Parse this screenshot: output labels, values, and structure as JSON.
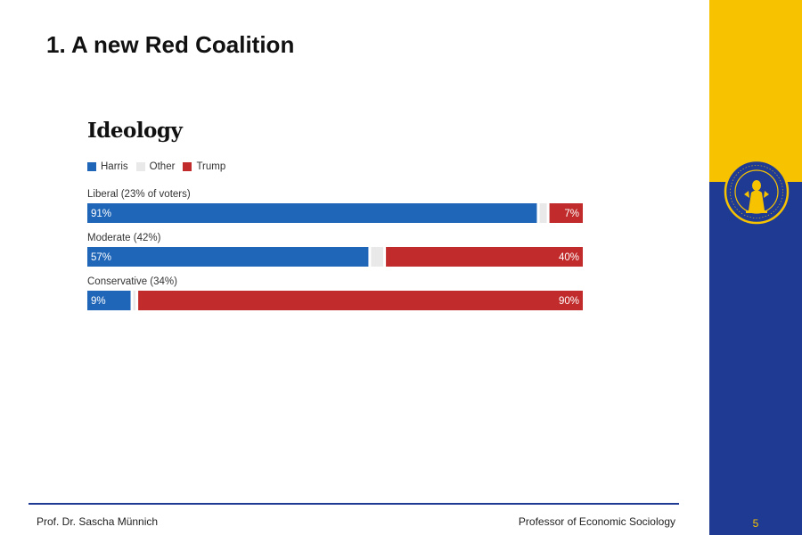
{
  "slide": {
    "title": "1. A new Red Coalition",
    "footer_left": "Prof. Dr. Sascha Münnich",
    "footer_right": "Professor of Economic Sociology",
    "page_number": "5"
  },
  "colors": {
    "harris": "#1f66b8",
    "other": "#e9e9e9",
    "trump": "#c12b2b",
    "brand_blue": "#1f3a93",
    "brand_yellow": "#f7c300"
  },
  "chart_data": {
    "type": "bar",
    "orientation": "horizontal",
    "stacked": true,
    "title": "Ideology",
    "legend": [
      "Harris",
      "Other",
      "Trump"
    ],
    "legend_position": "top-left",
    "categories": [
      "Liberal (23% of voters)",
      "Moderate (42%)",
      "Conservative (34%)"
    ],
    "series": [
      {
        "name": "Harris",
        "values": [
          91,
          57,
          9
        ],
        "labels": [
          "91%",
          "57%",
          "9%"
        ]
      },
      {
        "name": "Other",
        "values": [
          2,
          3,
          1
        ],
        "labels": [
          "",
          "",
          ""
        ]
      },
      {
        "name": "Trump",
        "values": [
          7,
          40,
          90
        ],
        "labels": [
          "7%",
          "40%",
          "90%"
        ]
      }
    ],
    "xlim": [
      0,
      100
    ],
    "grid": false
  }
}
